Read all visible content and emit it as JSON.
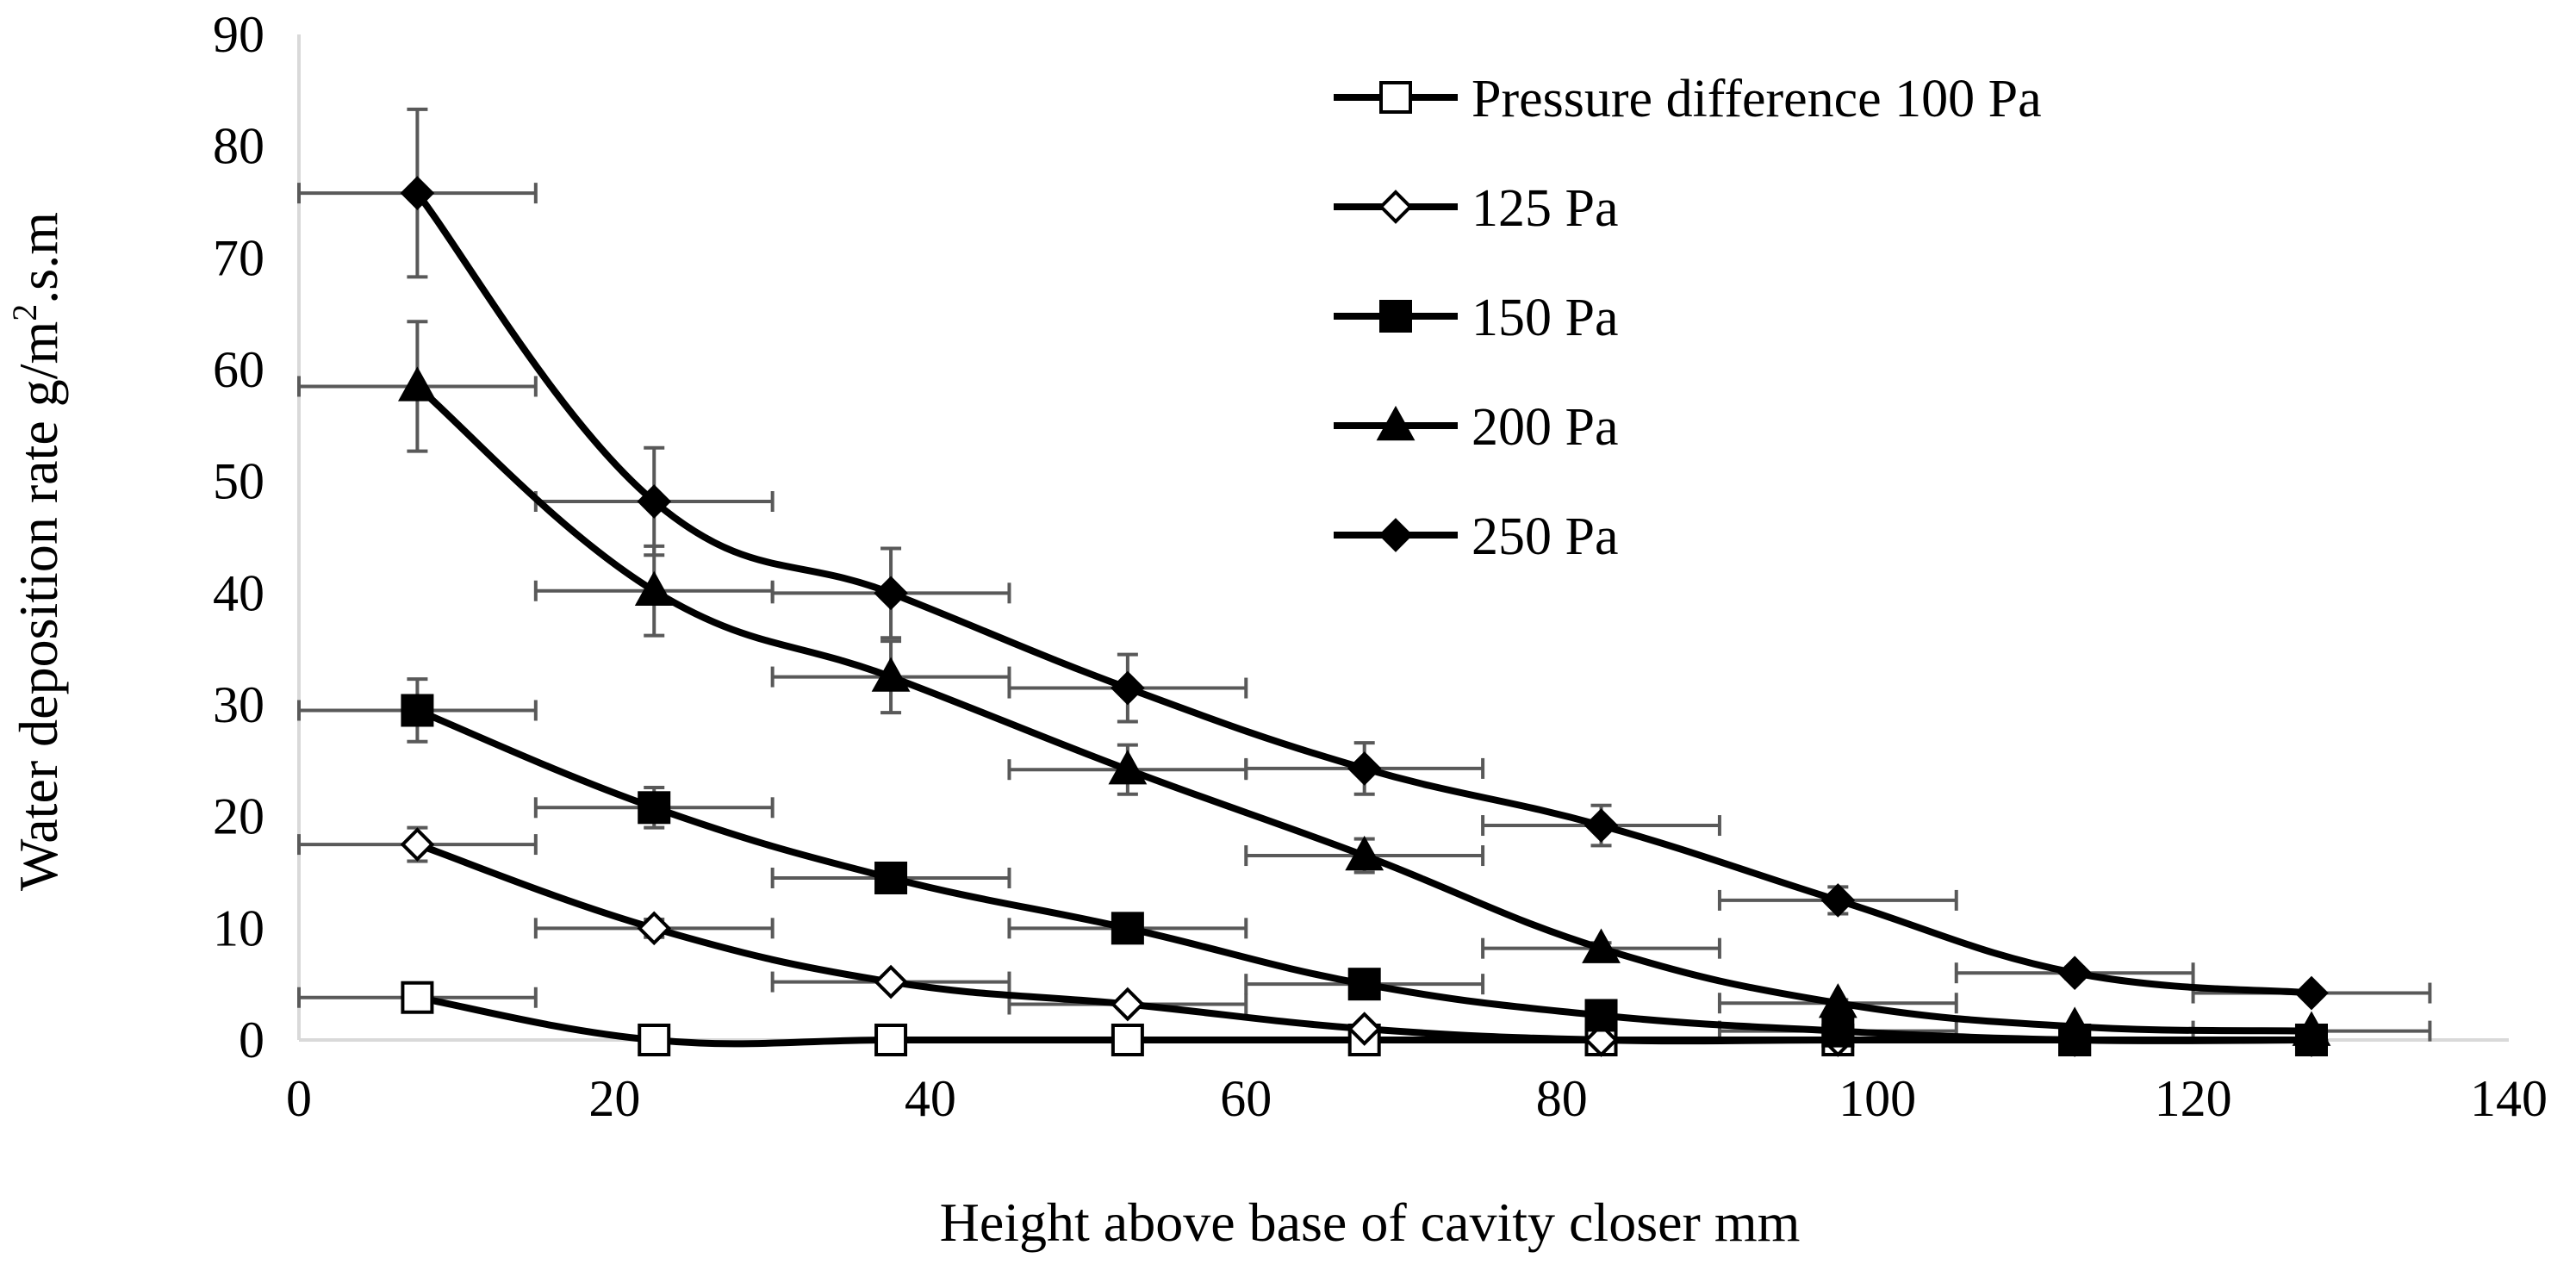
{
  "chart_data": {
    "type": "line",
    "title": "",
    "xlabel": "Height above base of cavity closer  mm",
    "ylabel_main": "Water deposition rate g/m",
    "ylabel_sup": "2",
    "ylabel_tail": ".s.m",
    "xlim": [
      0,
      140
    ],
    "ylim": [
      0,
      90
    ],
    "x_ticks": [
      0,
      20,
      40,
      60,
      80,
      100,
      120,
      140
    ],
    "y_ticks": [
      0,
      10,
      20,
      30,
      40,
      50,
      60,
      70,
      80,
      90
    ],
    "x_error": 7.5,
    "legend_position": "top-right",
    "series": [
      {
        "name": "Pressure difference 100 Pa",
        "marker": "square-open",
        "x": [
          7.5,
          22.5,
          37.5,
          52.5,
          67.5,
          82.5,
          97.5,
          112.5,
          127.5
        ],
        "y": [
          3.8,
          0,
          0,
          0,
          0,
          0,
          0,
          0,
          0
        ],
        "y_err": [
          0,
          0,
          0,
          0,
          0,
          0,
          0,
          0,
          0
        ],
        "show_x_err": [
          true,
          false,
          false,
          false,
          false,
          false,
          false,
          false,
          false
        ]
      },
      {
        "name": "125 Pa",
        "marker": "diamond-open",
        "x": [
          7.5,
          22.5,
          37.5,
          52.5,
          67.5,
          82.5,
          97.5,
          112.5,
          127.5
        ],
        "y": [
          17.5,
          10,
          5.2,
          3.2,
          1,
          0,
          0,
          0,
          0
        ],
        "y_err": [
          1.5,
          0.8,
          0.5,
          0.3,
          0,
          0,
          0,
          0,
          0
        ],
        "show_x_err": [
          true,
          true,
          true,
          true,
          false,
          false,
          false,
          false,
          false
        ]
      },
      {
        "name": "150 Pa",
        "marker": "square-filled",
        "x": [
          7.5,
          22.5,
          37.5,
          52.5,
          67.5,
          82.5,
          97.5,
          112.5,
          127.5
        ],
        "y": [
          29.5,
          20.8,
          14.5,
          10,
          5,
          2.2,
          0.8,
          0,
          0
        ],
        "y_err": [
          2.8,
          1.8,
          0.5,
          0.5,
          0.5,
          0.3,
          0,
          0,
          0
        ],
        "show_x_err": [
          true,
          true,
          true,
          true,
          true,
          false,
          true,
          false,
          false
        ]
      },
      {
        "name": "200 Pa",
        "marker": "triangle-filled",
        "x": [
          7.5,
          22.5,
          37.5,
          52.5,
          67.5,
          82.5,
          97.5,
          112.5,
          127.5
        ],
        "y": [
          58.5,
          40.2,
          32.5,
          24.2,
          16.5,
          8.2,
          3.3,
          1.2,
          0.8
        ],
        "y_err": [
          5.8,
          4,
          3.2,
          2.2,
          1.5,
          0.5,
          0.3,
          0,
          0
        ],
        "show_x_err": [
          true,
          true,
          true,
          true,
          true,
          true,
          true,
          false,
          true
        ]
      },
      {
        "name": "250 Pa",
        "marker": "diamond-filled",
        "x": [
          7.5,
          22.5,
          37.5,
          52.5,
          67.5,
          82.5,
          97.5,
          112.5,
          127.5
        ],
        "y": [
          75.8,
          48.2,
          40,
          31.5,
          24.3,
          19.2,
          12.5,
          6,
          4.2
        ],
        "y_err": [
          7.5,
          4.8,
          4,
          3,
          2.3,
          1.8,
          1.2,
          0.5,
          0.3
        ],
        "show_x_err": [
          true,
          true,
          true,
          true,
          true,
          true,
          true,
          true,
          true
        ]
      }
    ]
  }
}
